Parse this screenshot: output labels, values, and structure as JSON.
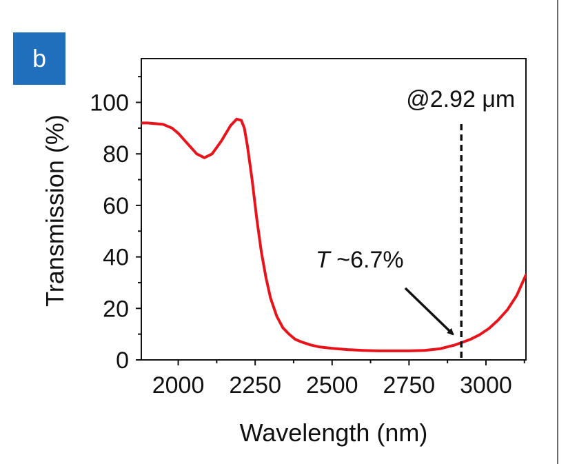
{
  "panel_label": "b",
  "chart_data": {
    "type": "line",
    "xlabel": "Wavelength (nm)",
    "ylabel": "Transmission (%)",
    "xlim": [
      1880,
      3130
    ],
    "ylim": [
      0,
      117
    ],
    "x_ticks": [
      2000,
      2250,
      2500,
      2750,
      3000
    ],
    "y_ticks": [
      0,
      20,
      40,
      60,
      80,
      100
    ],
    "grid": false,
    "series": [
      {
        "color": "#e8141b",
        "x": [
          1880,
          1900,
          1950,
          1980,
          2000,
          2030,
          2060,
          2085,
          2110,
          2140,
          2170,
          2190,
          2205,
          2215,
          2225,
          2240,
          2255,
          2270,
          2285,
          2300,
          2320,
          2340,
          2360,
          2380,
          2400,
          2430,
          2460,
          2500,
          2550,
          2600,
          2650,
          2700,
          2750,
          2800,
          2850,
          2900,
          2920,
          2950,
          2980,
          3010,
          3040,
          3070,
          3100,
          3130
        ],
        "y": [
          92,
          92,
          91.5,
          90,
          88,
          84,
          80,
          78.5,
          80,
          85,
          91,
          93.5,
          93,
          90,
          83,
          70,
          55,
          42,
          32,
          24,
          17,
          12.5,
          10,
          8,
          7,
          5.8,
          5,
          4.5,
          4,
          3.7,
          3.5,
          3.5,
          3.5,
          3.7,
          4.3,
          5.8,
          6.7,
          8,
          9.8,
          12.2,
          15.5,
          19.5,
          25,
          33
        ]
      }
    ],
    "marker_line": {
      "x": 2920,
      "label": "@2.92 μm"
    },
    "annotation": {
      "label_italic": "T",
      "label_rest": " ~6.7%",
      "x": 2920,
      "y": 6.7
    }
  }
}
